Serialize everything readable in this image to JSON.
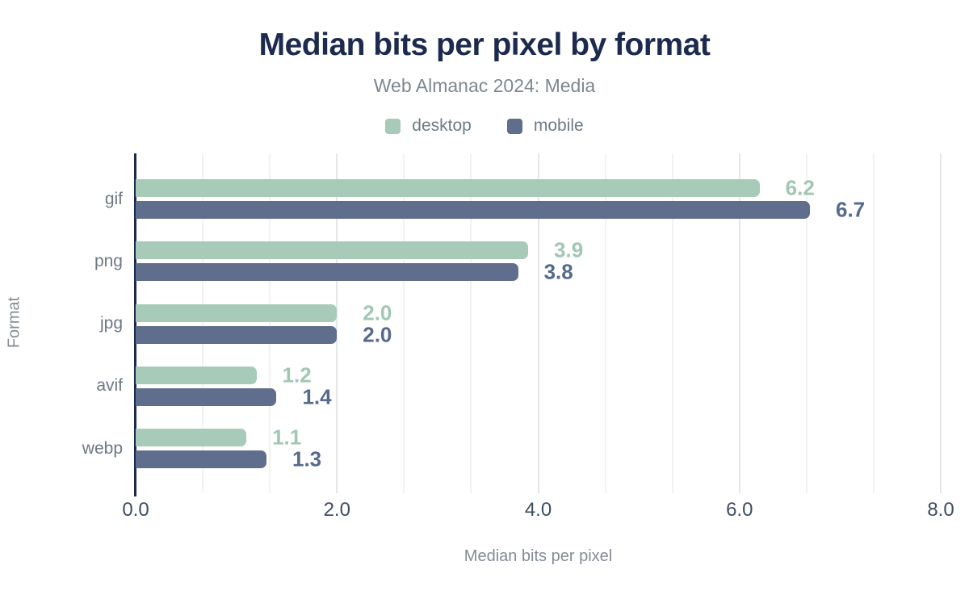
{
  "title": "Median bits per pixel by format",
  "subtitle": "Web Almanac 2024: Media",
  "legend": {
    "items": [
      {
        "label": "desktop",
        "color": "#a7cab9"
      },
      {
        "label": "mobile",
        "color": "#5e6e8c"
      }
    ]
  },
  "colors": {
    "title_navy": "#1b2a4e",
    "axis_navy": "#1b2b4d",
    "desktop_green": "#a7cab9",
    "mobile_slate": "#5e6e8c",
    "desktop_label": "#a1c7b4",
    "mobile_label": "#556a8c",
    "grid_minor": "#f1f2f4",
    "grid_major": "#e4e7ea"
  },
  "chart_data": {
    "type": "bar",
    "orientation": "horizontal",
    "title": "Median bits per pixel by format",
    "subtitle": "Web Almanac 2024: Media",
    "categories": [
      "gif",
      "png",
      "jpg",
      "avif",
      "webp"
    ],
    "series": [
      {
        "name": "desktop",
        "color": "#a7cab9",
        "label_color": "#a1c7b4",
        "values": [
          6.2,
          3.9,
          2.0,
          1.2,
          1.1
        ]
      },
      {
        "name": "mobile",
        "color": "#5e6e8c",
        "label_color": "#556a8c",
        "values": [
          6.7,
          3.8,
          2.0,
          1.4,
          1.3
        ]
      }
    ],
    "xlabel": "Median bits per pixel",
    "ylabel": "Format",
    "xlim": [
      0,
      8
    ],
    "x_ticks": [
      {
        "value": 0,
        "label": "0.0"
      },
      {
        "value": 2,
        "label": "2.0"
      },
      {
        "value": 4,
        "label": "4.0"
      },
      {
        "value": 6,
        "label": "6.0"
      },
      {
        "value": 8,
        "label": "8.0"
      }
    ],
    "grid": "vertical, minor every 2/3 unit, major every 2 units",
    "legend_position": "top center",
    "value_labels": "one decimal, right of bar end"
  }
}
